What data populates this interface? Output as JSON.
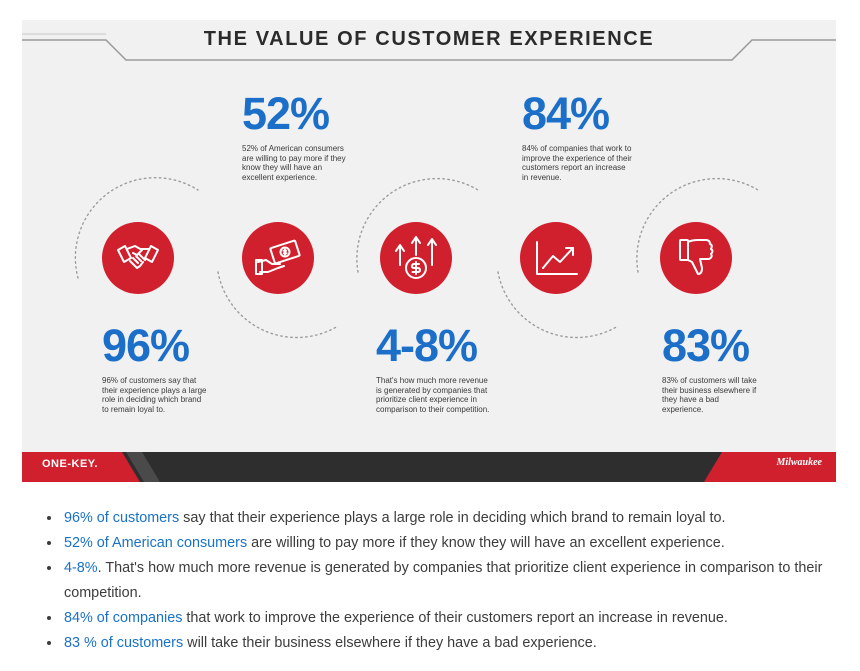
{
  "infographic": {
    "title": "THE VALUE OF CUSTOMER EXPERIENCE",
    "stats": [
      {
        "value": "52%",
        "text": "52% of American consumers are willing to pay more if they know they will have an excellent experience."
      },
      {
        "value": "84%",
        "text": "84% of companies that work to improve the experience of their customers report an increase in revenue."
      },
      {
        "value": "96%",
        "text": "96% of customers say that their experience plays a large role in deciding which brand to remain loyal to."
      },
      {
        "value": "4-8%",
        "text": "That's how much more revenue is generated by companies that prioritize client experience in comparison to their competition."
      },
      {
        "value": "83%",
        "text": "83% of customers will take their business elsewhere if they have a bad experience."
      }
    ],
    "icons": [
      "handshake-icon",
      "money-bill-icon",
      "dollar-growth-icon",
      "trend-chart-icon",
      "thumbs-down-icon"
    ],
    "colors": {
      "accent_red": "#d0202e",
      "stat_blue": "#1b6fc9",
      "footer_dark": "#2e2e2e"
    },
    "footer_left_brand": "ONE-KEY.",
    "footer_right_brand": "Milwaukee"
  },
  "bullets": [
    {
      "link": "96% of customers",
      "text": " say that their experience plays a large role in deciding which brand to remain loyal to."
    },
    {
      "link": "52% of American consumers",
      "text": " are willing to pay more if they know they will have an excellent experience."
    },
    {
      "link": "4-8%",
      "text": ". That's how much more revenue is generated by companies that prioritize client experience in comparison to their competition."
    },
    {
      "link": "84% of companies",
      "text": " that work to improve the experience of their customers report an increase in revenue."
    },
    {
      "link": "83 % of customers",
      "text": " will take their business elsewhere if they have a bad experience."
    }
  ]
}
